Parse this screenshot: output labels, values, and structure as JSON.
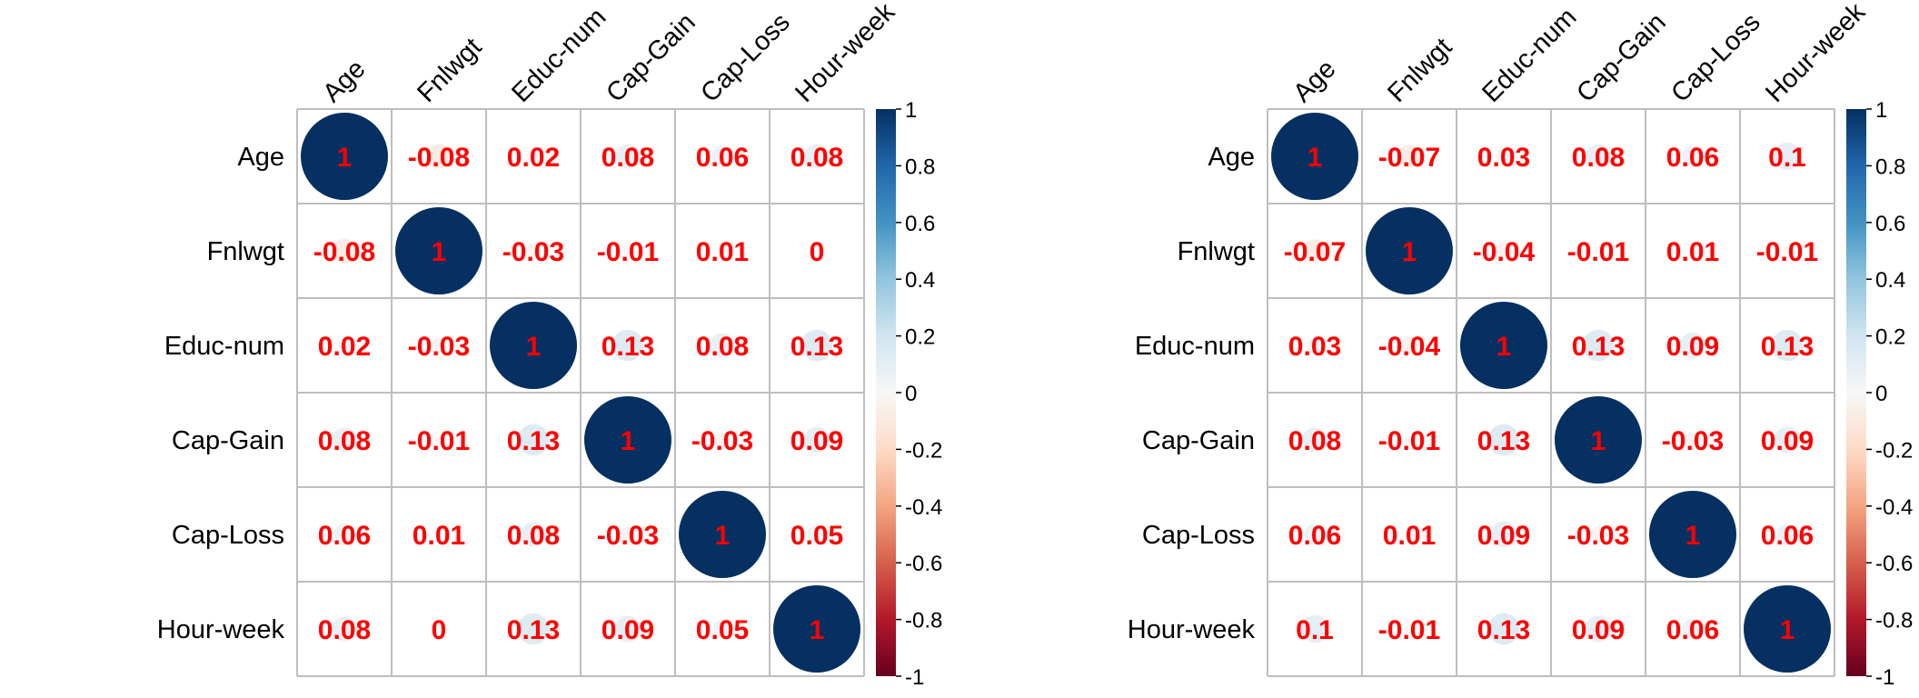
{
  "chart_data": [
    {
      "type": "heatmap",
      "style": "corrplot-circle",
      "labels": [
        "Age",
        "Fnlwgt",
        "Educ-num",
        "Cap-Gain",
        "Cap-Loss",
        "Hour-week"
      ],
      "matrix": [
        [
          1,
          -0.08,
          0.02,
          0.08,
          0.06,
          0.08
        ],
        [
          -0.08,
          1,
          -0.03,
          -0.01,
          0.01,
          0
        ],
        [
          0.02,
          -0.03,
          1,
          0.13,
          0.08,
          0.13
        ],
        [
          0.08,
          -0.01,
          0.13,
          1,
          -0.03,
          0.09
        ],
        [
          0.06,
          0.01,
          0.08,
          -0.03,
          1,
          0.05
        ],
        [
          0.08,
          0,
          0.13,
          0.09,
          0.05,
          1
        ]
      ],
      "colorbar": {
        "range": [
          -1,
          1
        ],
        "ticks": [
          1,
          0.8,
          0.6,
          0.4,
          0.2,
          0,
          -0.2,
          -0.4,
          -0.6,
          -0.8,
          -1
        ]
      },
      "grid": true
    },
    {
      "type": "heatmap",
      "style": "corrplot-circle",
      "labels": [
        "Age",
        "Fnlwgt",
        "Educ-num",
        "Cap-Gain",
        "Cap-Loss",
        "Hour-week"
      ],
      "matrix": [
        [
          1,
          -0.07,
          0.03,
          0.08,
          0.06,
          0.1
        ],
        [
          -0.07,
          1,
          -0.04,
          -0.01,
          0.01,
          -0.01
        ],
        [
          0.03,
          -0.04,
          1,
          0.13,
          0.09,
          0.13
        ],
        [
          0.08,
          -0.01,
          0.13,
          1,
          -0.03,
          0.09
        ],
        [
          0.06,
          0.01,
          0.09,
          -0.03,
          1,
          0.06
        ],
        [
          0.1,
          -0.01,
          0.13,
          0.09,
          0.06,
          1
        ]
      ],
      "colorbar": {
        "range": [
          -1,
          1
        ],
        "ticks": [
          1,
          0.8,
          0.6,
          0.4,
          0.2,
          0,
          -0.2,
          -0.4,
          -0.6,
          -0.8,
          -1
        ]
      },
      "grid": true
    }
  ],
  "colors": {
    "value_text": "#ff0000",
    "grid": "#bebebe",
    "positive_strong": "#053061",
    "negative_strong": "#67001f",
    "neutral": "#f7f7f7"
  }
}
